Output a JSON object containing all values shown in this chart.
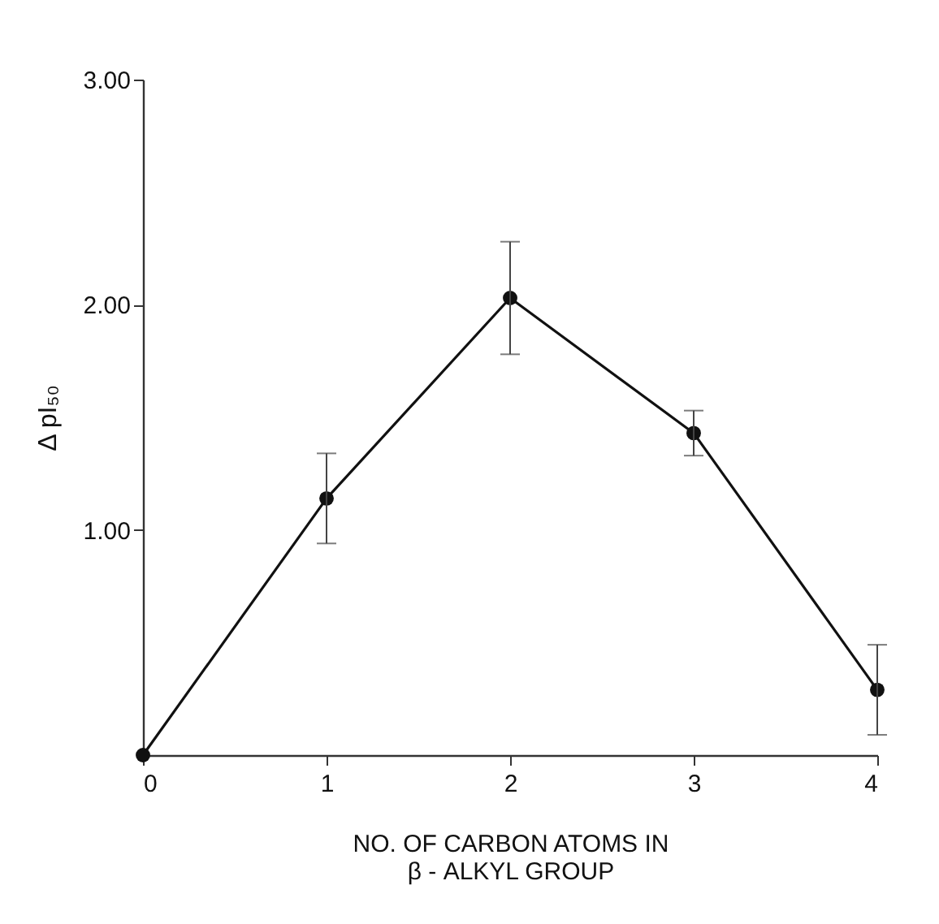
{
  "chart_data": {
    "type": "line",
    "xlabel": "NO. OF CARBON ATOMS IN\nβ - ALKYL GROUP",
    "ylabel": "Δ pI₅₀",
    "x": [
      0,
      1,
      2,
      3,
      4
    ],
    "values": [
      0,
      1.14,
      2.03,
      1.43,
      0.29
    ],
    "errors": [
      null,
      0.2,
      0.25,
      0.1,
      0.2
    ],
    "color": "#111111",
    "xlim": [
      0,
      4
    ],
    "xticks": [
      0,
      1,
      2,
      3,
      4
    ],
    "ylim": [
      0,
      3
    ],
    "yticks": [
      {
        "value": 1,
        "label": "1.00"
      },
      {
        "value": 2,
        "label": "2.00"
      },
      {
        "value": 3,
        "label": "3.00"
      }
    ],
    "marker": "circle",
    "line_style": "solid",
    "grid": false
  }
}
